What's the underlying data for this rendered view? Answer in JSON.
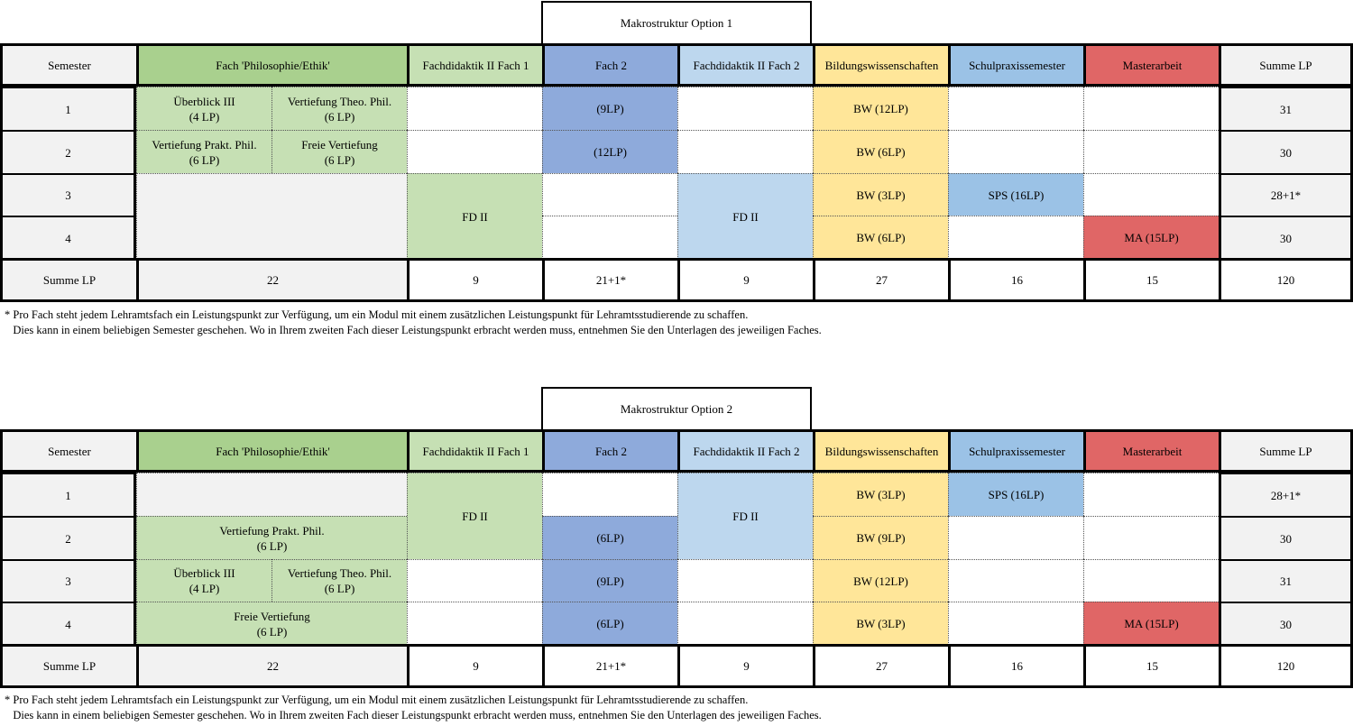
{
  "colors": {
    "fach_header": "#a9d08e",
    "fach_cell": "#c6e0b4",
    "fd1": "#c6e0b4",
    "fach2": "#8eaadb",
    "fd2": "#bdd7ee",
    "bw": "#ffe699",
    "sps": "#9bc2e6",
    "ma": "#e06666",
    "neutral": "#f2f2f2"
  },
  "options": [
    {
      "title": "Makrostruktur Option 1",
      "headers": [
        "Semester",
        "Fach 'Philosophie/Ethik'",
        "Fachdidaktik II Fach 1",
        "Fach 2",
        "Fachdidaktik II Fach 2",
        "Bildungswissenschaften",
        "Schulpraxissemester",
        "Masterarbeit",
        "Summe LP"
      ],
      "semesters": [
        "1",
        "2",
        "3",
        "4"
      ],
      "phil": [
        "Überblick III\n(4 LP)",
        "Vertiefung Theo. Phil.\n(6 LP)",
        "Vertiefung Prakt. Phil.\n(6 LP)",
        "Freie Vertiefung\n(6 LP)"
      ],
      "fd1": "FD II",
      "fach2": [
        "(9LP)",
        "(12LP)"
      ],
      "fd2": "FD II",
      "bw": [
        "BW (12LP)",
        "BW (6LP)",
        "BW (3LP)",
        "BW (6LP)"
      ],
      "sps": "SPS (16LP)",
      "ma": "MA (15LP)",
      "row_sums": [
        "31",
        "30",
        "28+1*",
        "30"
      ],
      "summary_label": "Summe LP",
      "col_sums": [
        "22",
        "9",
        "21+1*",
        "9",
        "27",
        "16",
        "15",
        "120"
      ],
      "footnote": [
        "* Pro Fach steht jedem Lehramtsfach ein Leistungspunkt zur Verfügung, um ein Modul mit einem zusätzlichen Leistungspunkt für Lehramtsstudierende zu schaffen.",
        "   Dies kann in einem beliebigen Semester geschehen. Wo in Ihrem zweiten Fach dieser Leistungspunkt erbracht werden muss, entnehmen Sie den Unterlagen des jeweiligen Faches."
      ]
    },
    {
      "title": "Makrostruktur Option 2",
      "headers": [
        "Semester",
        "Fach 'Philosophie/Ethik'",
        "Fachdidaktik II Fach 1",
        "Fach 2",
        "Fachdidaktik II Fach 2",
        "Bildungswissenschaften",
        "Schulpraxissemester",
        "Masterarbeit",
        "Summe LP"
      ],
      "semesters": [
        "1",
        "2",
        "3",
        "4"
      ],
      "phil": [
        "Vertiefung Prakt. Phil.\n(6 LP)",
        "Überblick III\n(4 LP)",
        "Vertiefung Theo. Phil.\n(6 LP)",
        "Freie Vertiefung\n(6 LP)"
      ],
      "fd1": "FD II",
      "fach2": [
        "(6LP)",
        "(9LP)",
        "(6LP)"
      ],
      "fd2": "FD II",
      "bw": [
        "BW (3LP)",
        "BW (9LP)",
        "BW (12LP)",
        "BW (3LP)"
      ],
      "sps": "SPS (16LP)",
      "ma": "MA (15LP)",
      "row_sums": [
        "28+1*",
        "30",
        "31",
        "30"
      ],
      "summary_label": "Summe LP",
      "col_sums": [
        "22",
        "9",
        "21+1*",
        "9",
        "27",
        "16",
        "15",
        "120"
      ],
      "footnote": [
        "* Pro Fach steht jedem Lehramtsfach ein Leistungspunkt zur Verfügung, um ein Modul mit einem zusätzlichen Leistungspunkt für Lehramtsstudierende zu schaffen.",
        "   Dies kann in einem beliebigen Semester geschehen. Wo in Ihrem zweiten Fach dieser Leistungspunkt erbracht werden muss, entnehmen Sie den Unterlagen des jeweiligen Faches."
      ]
    }
  ]
}
